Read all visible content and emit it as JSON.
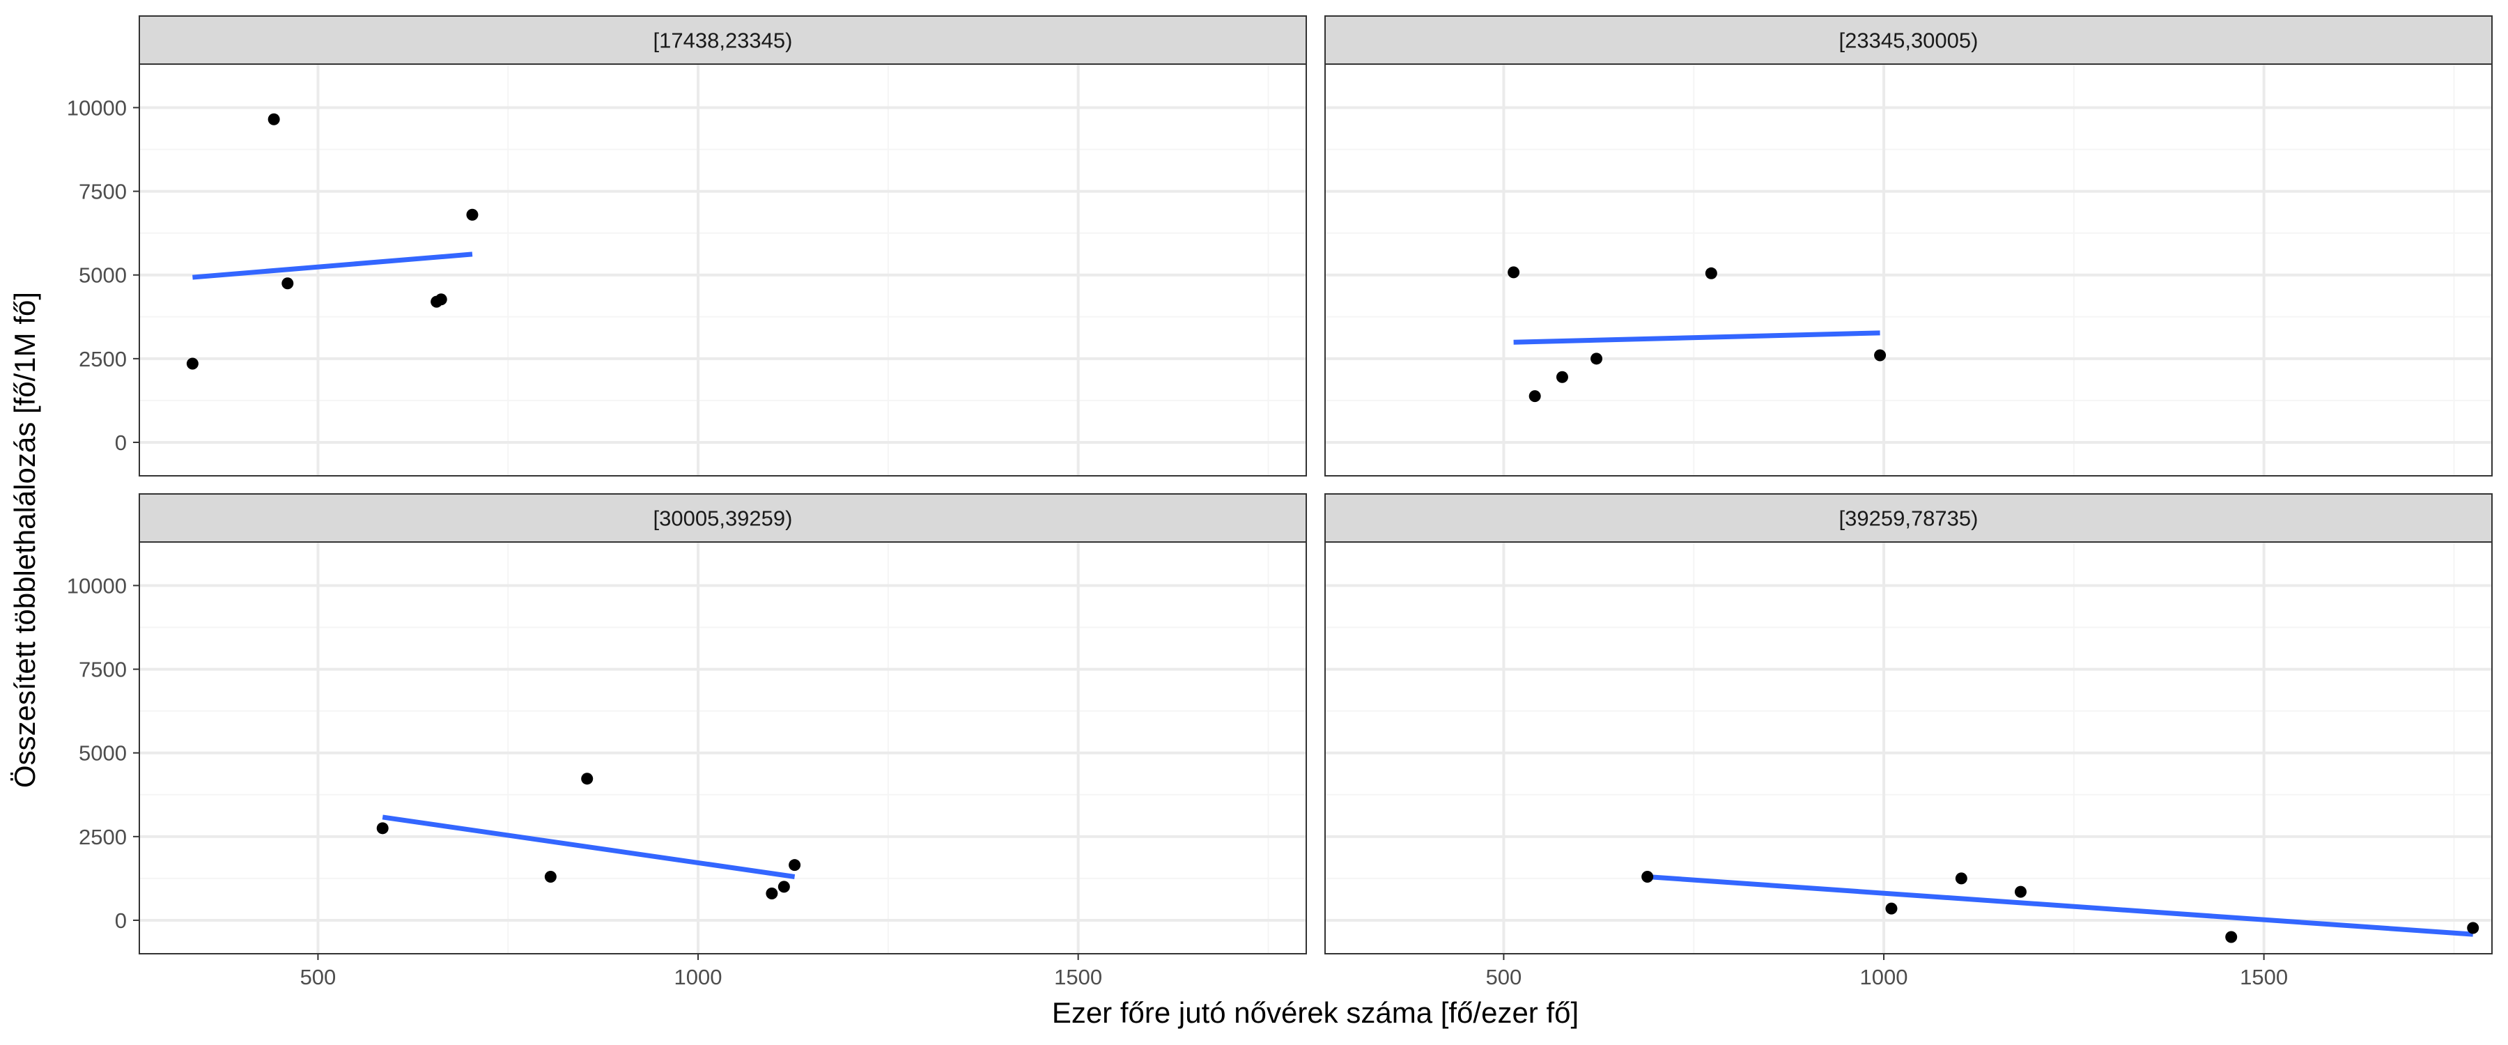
{
  "chart_data": {
    "type": "scatter",
    "layout": "facet-grid-2x2",
    "xlabel": "Ezer főre jutó nővérek száma [fő/ezer fő]",
    "ylabel": "Összesített többlethalálozás [fő/1M fő]",
    "xlim": [
      265,
      1800
    ],
    "ylim": [
      -1000,
      11300
    ],
    "x_ticks": [
      500,
      1000,
      1500
    ],
    "y_ticks": [
      0,
      2500,
      5000,
      7500,
      10000
    ],
    "x_tick_labels": [
      "500",
      "1000",
      "1500"
    ],
    "y_tick_labels": [
      "0",
      "2500",
      "5000",
      "7500",
      "10000"
    ],
    "grid": true,
    "trend": "linear",
    "colors": {
      "point": "#000000",
      "trend_line": "#3366FF",
      "strip_fill": "#d9d9d9",
      "grid_major": "#ebebeb",
      "grid_minor": "#f5f5f5",
      "panel_border": "#333333"
    },
    "facets": [
      {
        "strip": "[17438,23345)",
        "points": [
          {
            "x": 335,
            "y": 2350
          },
          {
            "x": 442,
            "y": 9650
          },
          {
            "x": 460,
            "y": 4750
          },
          {
            "x": 656,
            "y": 4200
          },
          {
            "x": 662,
            "y": 4270
          },
          {
            "x": 703,
            "y": 6800
          }
        ],
        "trend": {
          "x": [
            335,
            703
          ],
          "y": [
            4930,
            5620
          ]
        }
      },
      {
        "strip": "[23345,30005)",
        "points": [
          {
            "x": 513,
            "y": 5080
          },
          {
            "x": 541,
            "y": 1380
          },
          {
            "x": 577,
            "y": 1950
          },
          {
            "x": 622,
            "y": 2500
          },
          {
            "x": 773,
            "y": 5050
          },
          {
            "x": 995,
            "y": 2600
          }
        ],
        "trend": {
          "x": [
            513,
            995
          ],
          "y": [
            2990,
            3270
          ]
        }
      },
      {
        "strip": "[30005,39259)",
        "points": [
          {
            "x": 585,
            "y": 2750
          },
          {
            "x": 806,
            "y": 1300
          },
          {
            "x": 854,
            "y": 4230
          },
          {
            "x": 1097,
            "y": 800
          },
          {
            "x": 1113,
            "y": 1000
          },
          {
            "x": 1127,
            "y": 1650
          }
        ],
        "trend": {
          "x": [
            585,
            1127
          ],
          "y": [
            3080,
            1300
          ]
        }
      },
      {
        "strip": "[39259,78735)",
        "points": [
          {
            "x": 689,
            "y": 1300
          },
          {
            "x": 1010,
            "y": 350
          },
          {
            "x": 1102,
            "y": 1250
          },
          {
            "x": 1180,
            "y": 850
          },
          {
            "x": 1457,
            "y": -500
          },
          {
            "x": 1775,
            "y": -230
          }
        ],
        "trend": {
          "x": [
            689,
            1775
          ],
          "y": [
            1300,
            -420
          ]
        }
      }
    ]
  }
}
